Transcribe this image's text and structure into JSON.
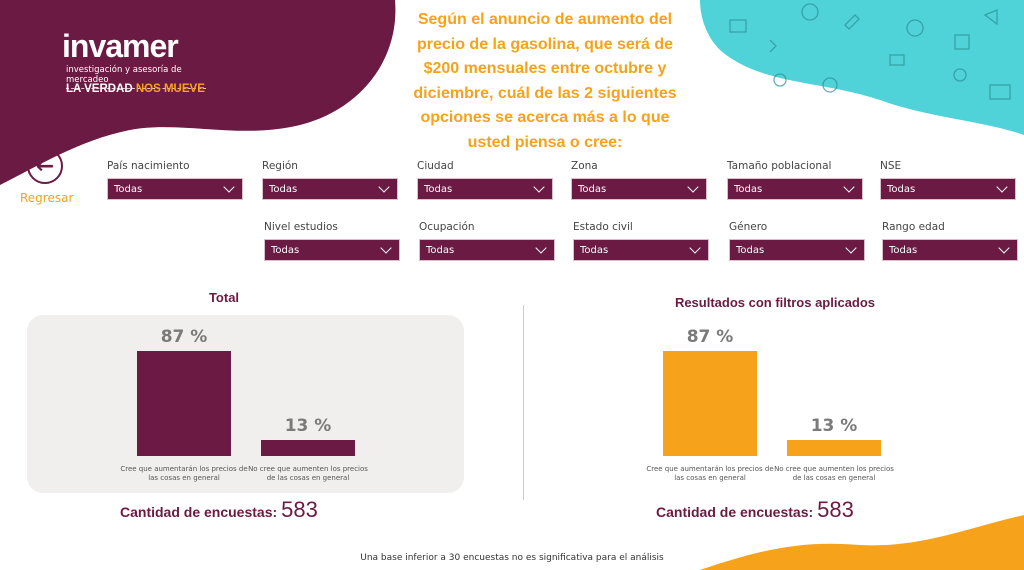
{
  "brand": {
    "name": "invamer",
    "subtitle": "investigación y asesoría de mercadeo",
    "tagline_a": "LA VERDAD ",
    "tagline_b": "NOS MUEVE"
  },
  "question": "Según el anuncio de aumento del precio de la gasolina, que será de $200 mensuales entre octubre y diciembre, cuál de las 2 siguientes opciones se acerca más a lo que usted piensa o cree:",
  "back": {
    "label": "Regresar"
  },
  "filters": [
    {
      "label": "País nacimiento",
      "value": "Todas"
    },
    {
      "label": "Región",
      "value": "Todas"
    },
    {
      "label": "Ciudad",
      "value": "Todas"
    },
    {
      "label": "Zona",
      "value": "Todas"
    },
    {
      "label": "Tamaño poblacional",
      "value": "Todas"
    },
    {
      "label": "NSE",
      "value": "Todas"
    },
    {
      "label": "Nivel estudios",
      "value": "Todas"
    },
    {
      "label": "Ocupación",
      "value": "Todas"
    },
    {
      "label": "Estado civil",
      "value": "Todas"
    },
    {
      "label": "Género",
      "value": "Todas"
    },
    {
      "label": "Rango edad",
      "value": "Todas"
    }
  ],
  "chart_data": [
    {
      "type": "bar",
      "title": "Total",
      "categories": [
        "Cree que aumentarán los precios de las cosas en general",
        "No cree que aumenten los precios de las cosas en general"
      ],
      "values": [
        87,
        13
      ],
      "labels": [
        "87 %",
        "13 %"
      ],
      "ylim": [
        0,
        100
      ],
      "color": "#6b1a44",
      "count_label": "Cantidad de encuestas:",
      "count": "583"
    },
    {
      "type": "bar",
      "title": "Resultados con filtros aplicados",
      "categories": [
        "Cree que aumentarán los precios de las cosas en general",
        "No cree que aumenten los precios de las cosas en general"
      ],
      "values": [
        87,
        13
      ],
      "labels": [
        "87 %",
        "13 %"
      ],
      "ylim": [
        0,
        100
      ],
      "color": "#f7a21b",
      "count_label": "Cantidad de encuestas:",
      "count": "583"
    }
  ],
  "footer": "Una base inferior a 30 encuestas no es significativa para el análisis"
}
